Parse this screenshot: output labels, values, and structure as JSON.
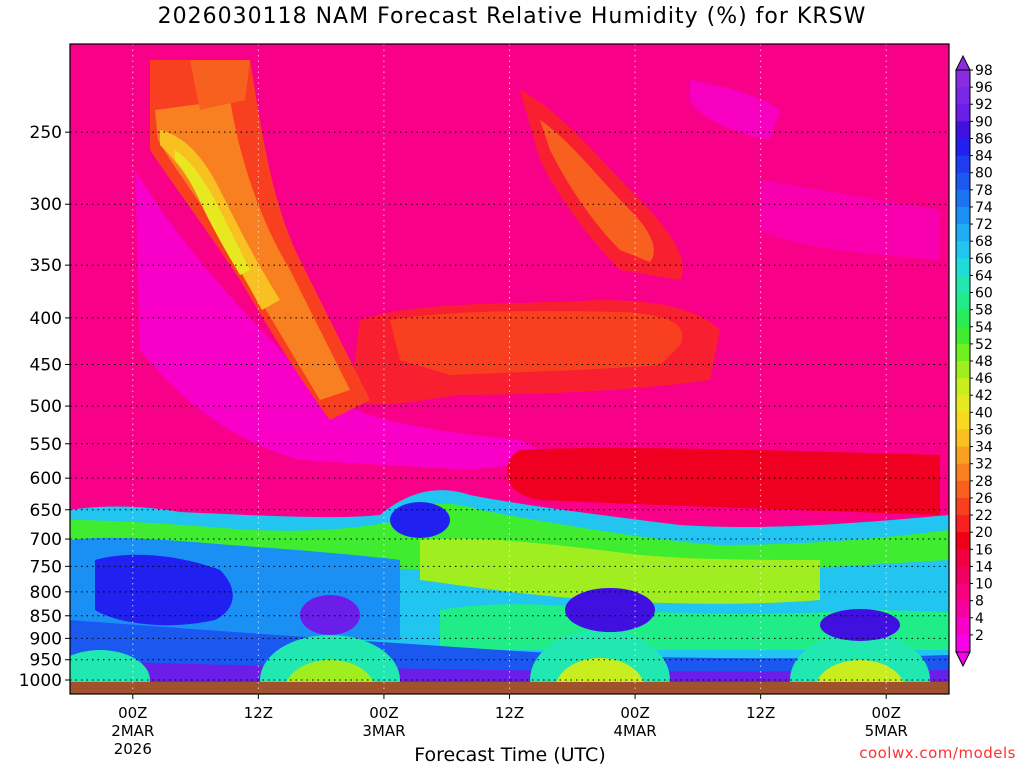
{
  "title": "2026030118 NAM Forecast Relative Humidity (%) for KRSW",
  "xlabel": "Forecast Time (UTC)",
  "credit": "coolwx.com/models",
  "chart_data": {
    "type": "heatmap",
    "title": "2026030118 NAM Forecast Relative Humidity (%) for KRSW",
    "xlabel": "Forecast Time (UTC)",
    "ylabel": "",
    "x_ticks": [
      {
        "hour": 6,
        "lines": [
          "00Z",
          "2MAR",
          "2026"
        ]
      },
      {
        "hour": 18,
        "lines": [
          "12Z"
        ]
      },
      {
        "hour": 30,
        "lines": [
          "00Z",
          "3MAR"
        ]
      },
      {
        "hour": 42,
        "lines": [
          "12Z"
        ]
      },
      {
        "hour": 54,
        "lines": [
          "00Z",
          "4MAR"
        ]
      },
      {
        "hour": 66,
        "lines": [
          "12Z"
        ]
      },
      {
        "hour": 78,
        "lines": [
          "00Z",
          "5MAR"
        ]
      }
    ],
    "xlim_hours": [
      0,
      84
    ],
    "y_ticks": [
      250,
      300,
      350,
      400,
      450,
      500,
      550,
      600,
      650,
      700,
      750,
      800,
      850,
      900,
      950,
      1000
    ],
    "ylim_hpa": [
      200,
      1000
    ],
    "y_scale": "log",
    "colorbar_labels": [
      98,
      96,
      92,
      90,
      86,
      84,
      80,
      78,
      74,
      72,
      68,
      66,
      64,
      60,
      58,
      54,
      52,
      48,
      46,
      42,
      40,
      36,
      34,
      32,
      28,
      26,
      22,
      20,
      16,
      14,
      10,
      8,
      4,
      2
    ],
    "colorbar_colors": [
      "#8a2be2",
      "#7a28e8",
      "#6a1ee8",
      "#4010e0",
      "#2020f0",
      "#1e3cf0",
      "#1a58f0",
      "#1a74f4",
      "#1a90f4",
      "#20acf4",
      "#22c4f0",
      "#20dcd8",
      "#20e8b0",
      "#20ec88",
      "#28ec58",
      "#40ec30",
      "#70ee20",
      "#a0ee20",
      "#c8ee20",
      "#e8e820",
      "#f8d820",
      "#f8c020",
      "#f8a020",
      "#f88020",
      "#f86020",
      "#f84020",
      "#f82020",
      "#f00018",
      "#f00040",
      "#f00060",
      "#f80080",
      "#f800a0",
      "#f800c8",
      "#f800e8"
    ],
    "grid": true,
    "data": [
      {
        "pressure": 250,
        "rh_min": 4,
        "rh_max": 42
      },
      {
        "pressure": 400,
        "rh_min": 4,
        "rh_max": 32
      },
      {
        "pressure": 600,
        "rh_min": 8,
        "rh_max": 22
      },
      {
        "pressure": 650,
        "rh_min": 20,
        "rh_max": 90
      },
      {
        "pressure": 750,
        "rh_min": 60,
        "rh_max": 96
      },
      {
        "pressure": 850,
        "rh_min": 64,
        "rh_max": 98
      },
      {
        "pressure": 1000,
        "rh_min": 64,
        "rh_max": 98
      }
    ]
  }
}
